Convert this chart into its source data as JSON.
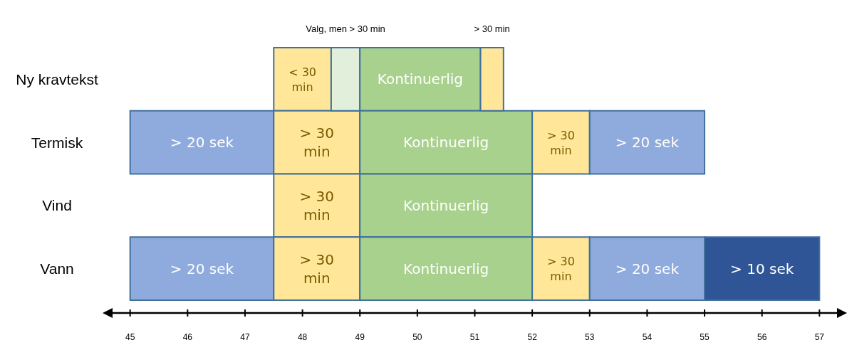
{
  "chart_data": {
    "type": "bar",
    "orientation": "horizontal",
    "categories": [
      "Ny kravtekst",
      "Termisk",
      "Vind",
      "Vann"
    ],
    "xlim": [
      44.57,
      57.43
    ],
    "xticks": [
      45,
      46,
      47,
      48,
      49,
      50,
      51,
      52,
      53,
      54,
      55,
      56,
      57
    ],
    "series": [
      {
        "color": "#8faadc",
        "base": [
          null,
          45,
          null,
          45
        ],
        "values": [
          null,
          2.5,
          null,
          2.5
        ],
        "value_labels": [
          null,
          "> 20 sek",
          null,
          "> 20 sek"
        ]
      },
      {
        "color": "#ffe699",
        "base": [
          47.5,
          47.5,
          47.5,
          47.5
        ],
        "values": [
          1,
          1.5,
          1.5,
          1.5
        ],
        "value_labels": [
          "< 30 min",
          "> 30 min",
          "> 30 min",
          "> 30 min"
        ]
      },
      {
        "color": "#e2efda",
        "base": [
          48.5,
          null,
          null,
          null
        ],
        "values": [
          0.5,
          null,
          null,
          null
        ],
        "value_labels": [
          null,
          null,
          null,
          null
        ]
      },
      {
        "color": "#a9d18e",
        "base": [
          49,
          49,
          49,
          49
        ],
        "values": [
          2.1,
          3,
          3,
          3
        ],
        "value_labels": [
          "Kontinuerlig",
          "Kontinuerlig",
          "Kontinuerlig",
          "Kontinuerlig"
        ]
      },
      {
        "color": "#ffe699",
        "base": [
          51.1,
          52,
          null,
          52
        ],
        "values": [
          0.4,
          1,
          null,
          1
        ],
        "value_labels": [
          null,
          "> 30 min",
          null,
          "> 30 min"
        ]
      },
      {
        "color": "#8faadc",
        "base": [
          null,
          53,
          null,
          53
        ],
        "values": [
          null,
          2,
          null,
          2
        ],
        "value_labels": [
          null,
          "> 20 sek",
          null,
          "> 20 sek"
        ]
      },
      {
        "color": "#2f5597",
        "base": [
          null,
          null,
          null,
          55
        ],
        "values": [
          null,
          null,
          null,
          2
        ],
        "value_labels": [
          null,
          null,
          null,
          "> 10 sek"
        ]
      }
    ],
    "annotations": [
      "Valg, men > 30 min",
      "> 30 min"
    ]
  }
}
